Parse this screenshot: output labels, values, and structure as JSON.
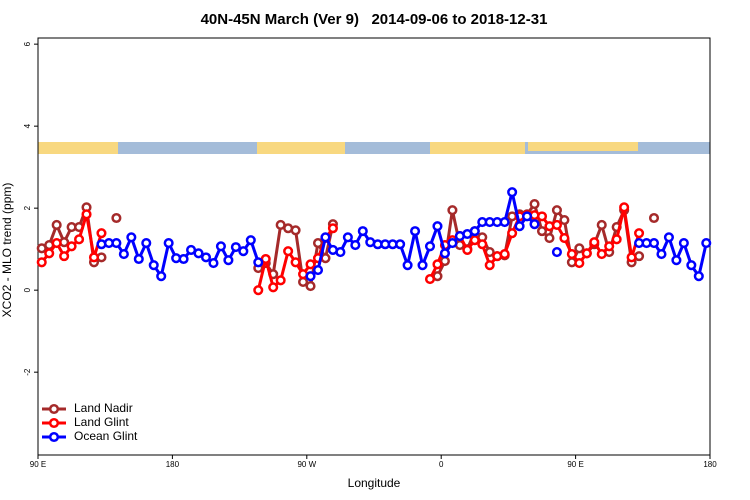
{
  "chart_data": {
    "type": "line",
    "title": "40N-45N March (Ver 9)   2014-09-06 to 2018-12-31",
    "xlabel": "Longitude",
    "ylabel": "XCO2 - MLO trend (ppm)",
    "xlim": [
      90,
      540
    ],
    "ylim": [
      -4.02,
      6.15
    ],
    "xticks": [
      {
        "value": 90,
        "label": "90 E"
      },
      {
        "value": 180,
        "label": "180"
      },
      {
        "value": 270,
        "label": "90 W"
      },
      {
        "value": 360,
        "label": "0"
      },
      {
        "value": 450,
        "label": "90 E"
      },
      {
        "value": 540,
        "label": "180"
      }
    ],
    "yticks": [
      -2,
      0,
      2,
      4,
      6
    ],
    "legend": "bottom-left",
    "series": [
      {
        "name": "Land Nadir",
        "color": "#a52a2a",
        "x": [
          92.5,
          97.5,
          102.5,
          107.5,
          112.5,
          117.5,
          122.5,
          127.5,
          132.5,
          137.5,
          142.5,
          147.5,
          237.5,
          242.5,
          247.5,
          252.5,
          257.5,
          262.5,
          267.5,
          272.5,
          277.5,
          282.5,
          287.5,
          292.5,
          357.5,
          362.5,
          367.5,
          372.5,
          377.5,
          382.5,
          387.5,
          392.5,
          397.5,
          402.5,
          407.5,
          412.5,
          417.5,
          422.5,
          427.5,
          432.5,
          437.5,
          442.5,
          447.5,
          452.5,
          457.5,
          462.5,
          467.5,
          472.5,
          477.5,
          482.5,
          487.5,
          492.5,
          497.5,
          502.5
        ],
        "values": [
          1.02,
          1.1,
          1.59,
          1.17,
          1.54,
          1.54,
          2.02,
          0.68,
          0.8,
          null,
          1.76,
          null,
          0.54,
          0.66,
          0.39,
          1.59,
          1.51,
          1.46,
          0.2,
          0.1,
          1.15,
          0.78,
          1.61,
          null,
          0.34,
          0.71,
          1.95,
          1.1,
          1.0,
          1.44,
          1.29,
          0.93,
          0.83,
          0.85,
          1.8,
          1.85,
          1.85,
          2.1,
          1.44,
          1.27,
          1.95,
          1.71,
          0.68,
          1.02,
          0.9,
          1.12,
          1.59,
          0.93,
          1.54,
          1.95,
          0.68,
          0.83,
          null,
          1.76
        ]
      },
      {
        "name": "Land Glint",
        "color": "#ff0000",
        "x": [
          92.5,
          97.5,
          102.5,
          107.5,
          112.5,
          117.5,
          122.5,
          127.5,
          132.5,
          137.5,
          237.5,
          242.5,
          247.5,
          252.5,
          257.5,
          262.5,
          267.5,
          272.5,
          277.5,
          282.5,
          287.5,
          292.5,
          352.5,
          357.5,
          362.5,
          367.5,
          372.5,
          377.5,
          382.5,
          387.5,
          392.5,
          397.5,
          402.5,
          407.5,
          412.5,
          417.5,
          422.5,
          427.5,
          432.5,
          437.5,
          442.5,
          447.5,
          452.5,
          457.5,
          462.5,
          467.5,
          472.5,
          477.5,
          482.5,
          487.5,
          492.5
        ],
        "values": [
          0.68,
          0.9,
          1.15,
          0.83,
          1.07,
          1.24,
          1.85,
          0.8,
          1.39,
          null,
          0,
          0.76,
          0.07,
          0.24,
          0.95,
          0.68,
          0.39,
          0.63,
          0.78,
          1.27,
          1.51,
          null,
          0.27,
          0.63,
          1.1,
          1.22,
          1.32,
          0.98,
          1.22,
          1.12,
          0.61,
          0.83,
          0.88,
          1.39,
          1.8,
          1.83,
          1.83,
          1.8,
          1.56,
          1.59,
          1.27,
          0.88,
          0.66,
          0.9,
          1.17,
          0.88,
          1.07,
          1.24,
          2.02,
          0.8,
          1.39
        ]
      },
      {
        "name": "Ocean Glint",
        "color": "#0000ff",
        "x": [
          132.5,
          137.5,
          142.5,
          147.5,
          152.5,
          157.5,
          162.5,
          167.5,
          172.5,
          177.5,
          182.5,
          187.5,
          192.5,
          197.5,
          202.5,
          207.5,
          212.5,
          217.5,
          222.5,
          227.5,
          232.5,
          237.5,
          242.5,
          272.5,
          277.5,
          282.5,
          287.5,
          292.5,
          297.5,
          302.5,
          307.5,
          312.5,
          317.5,
          322.5,
          327.5,
          332.5,
          337.5,
          342.5,
          347.5,
          352.5,
          357.5,
          362.5,
          367.5,
          372.5,
          377.5,
          382.5,
          387.5,
          392.5,
          397.5,
          402.5,
          407.5,
          412.5,
          417.5,
          422.5,
          427.5,
          437.5,
          442.5,
          492.5,
          497.5,
          502.5,
          507.5,
          512.5,
          517.5,
          522.5,
          527.5,
          532.5,
          537.5
        ],
        "values": [
          1.12,
          1.15,
          1.15,
          0.88,
          1.29,
          0.76,
          1.15,
          0.61,
          0.34,
          1.15,
          0.78,
          0.76,
          0.98,
          0.9,
          0.8,
          0.66,
          1.07,
          0.73,
          1.05,
          0.95,
          1.22,
          0.68,
          null,
          0.34,
          0.49,
          1.29,
          0.98,
          0.93,
          1.29,
          1.1,
          1.44,
          1.17,
          1.12,
          1.12,
          1.12,
          1.12,
          0.61,
          1.44,
          0.61,
          1.07,
          1.56,
          0.9,
          1.15,
          1.32,
          1.37,
          1.44,
          1.66,
          1.66,
          1.66,
          1.66,
          2.39,
          1.56,
          1.8,
          1.61,
          null,
          0.93,
          null,
          1.15,
          1.15,
          1.15,
          0.88,
          1.29,
          0.73,
          1.15,
          0.61,
          0.34,
          1.15
        ]
      }
    ]
  }
}
